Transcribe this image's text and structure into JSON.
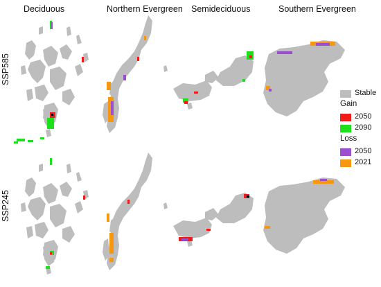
{
  "columns": [
    "Deciduous",
    "Northern Evergreen",
    "Semideciduous",
    "Southern Evergreen"
  ],
  "rows": [
    "SSP585",
    "SSP245"
  ],
  "legend": {
    "stable_label": "Stable",
    "gain_title": "Gain",
    "gain_items": [
      {
        "label": "2050",
        "color": "#f21b1b"
      },
      {
        "label": "2090",
        "color": "#1de01d"
      }
    ],
    "loss_title": "Loss",
    "loss_items": [
      {
        "label": "2050",
        "color": "#9b4fd0"
      },
      {
        "label": "2021",
        "color": "#f5970f"
      }
    ],
    "stable_color": "#bdbdbd"
  }
}
